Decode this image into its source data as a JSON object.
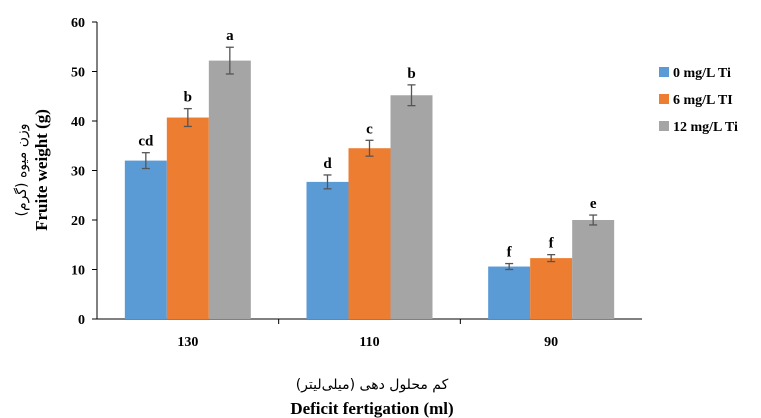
{
  "chart_data": {
    "type": "bar",
    "categories": [
      "130",
      "110",
      "90"
    ],
    "series": [
      {
        "name": "0 mg/L Ti",
        "color": "#5b9bd5",
        "values": [
          32.0,
          27.7,
          10.6
        ],
        "errors": [
          1.6,
          1.4,
          0.6
        ],
        "labels": [
          "cd",
          "d",
          "f"
        ]
      },
      {
        "name": "6 mg/L TI",
        "color": "#ed7d31",
        "values": [
          40.7,
          34.5,
          12.3
        ],
        "errors": [
          1.8,
          1.6,
          0.7
        ],
        "labels": [
          "b",
          "c",
          "f"
        ]
      },
      {
        "name": "12 mg/L Ti",
        "color": "#a5a5a5",
        "values": [
          52.2,
          45.2,
          20.0
        ],
        "errors": [
          2.7,
          2.1,
          1.0
        ],
        "labels": [
          "a",
          "b",
          "e"
        ]
      }
    ],
    "xlabel_fa": "کم محلول دهی (میلی‌لیتر)",
    "xlabel": "Deficit fertigation (ml)",
    "ylabel_fa": "وزن میوه (گرم)",
    "ylabel": "Fruite weight (g)",
    "ylim": [
      0,
      60
    ],
    "yticks": [
      "0",
      "10",
      "20",
      "30",
      "40",
      "50",
      "60"
    ],
    "grid": false,
    "legend_position": "right"
  }
}
